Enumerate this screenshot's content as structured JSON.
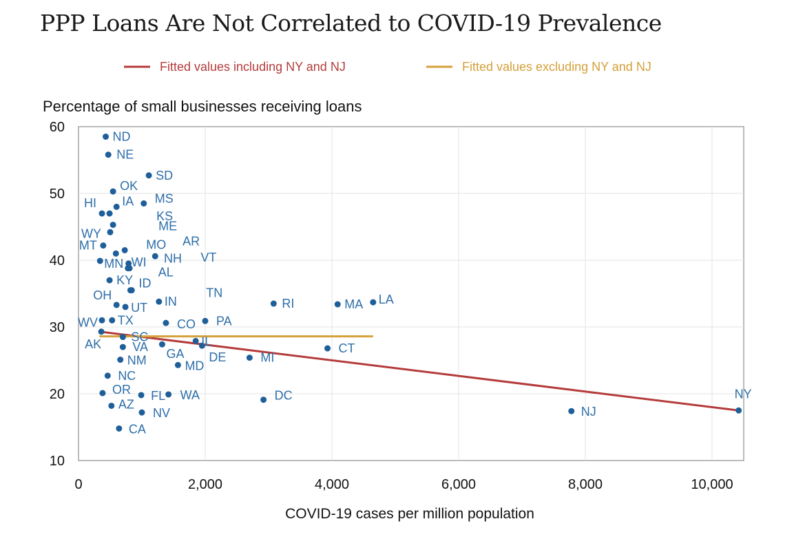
{
  "chart_data": {
    "type": "scatter",
    "title": "PPP Loans Are Not Correlated to COVID-19 Prevalence",
    "ylabel": "Percentage of small businesses receiving loans",
    "xlabel": "COVID-19 cases per million population",
    "xlim": [
      0,
      10500
    ],
    "ylim": [
      10,
      60
    ],
    "x_ticks": [
      0,
      2000,
      4000,
      6000,
      8000,
      10000
    ],
    "x_tick_labels": [
      "0",
      "2,000",
      "4,000",
      "6,000",
      "8,000",
      "10,000"
    ],
    "y_ticks": [
      10,
      20,
      30,
      40,
      50,
      60
    ],
    "y_tick_labels": [
      "10",
      "20",
      "30",
      "40",
      "50",
      "60"
    ],
    "grid": true,
    "legend_position": "top",
    "colors": {
      "points": "#1f5f99",
      "label": "#2d6ea8",
      "fit_incl": "#b53b3b",
      "fit_excl": "#d4a03a"
    },
    "series": [
      {
        "name": "States",
        "points": [
          {
            "label": "ND",
            "x": 430,
            "y": 58.5
          },
          {
            "label": "NE",
            "x": 470,
            "y": 55.8
          },
          {
            "label": "SD",
            "x": 1110,
            "y": 52.7
          },
          {
            "label": "OK",
            "x": 545,
            "y": 50.3
          },
          {
            "label": "MS",
            "x": 1030,
            "y": 48.5
          },
          {
            "label": "IA",
            "x": 600,
            "y": 48.0
          },
          {
            "label": "HI",
            "x": 370,
            "y": 47.0
          },
          {
            "label": "KS",
            "x": 490,
            "y": 47.0
          },
          {
            "label": "ME",
            "x": 545,
            "y": 45.3
          },
          {
            "label": "WY",
            "x": 500,
            "y": 44.2
          },
          {
            "label": "AR",
            "x": 730,
            "y": 41.5
          },
          {
            "label": "MT",
            "x": 390,
            "y": 42.2
          },
          {
            "label": "MO",
            "x": 590,
            "y": 41.0
          },
          {
            "label": "VT",
            "x": 1210,
            "y": 40.6
          },
          {
            "label": "WI",
            "x": 790,
            "y": 39.5
          },
          {
            "label": "MN",
            "x": 340,
            "y": 39.9
          },
          {
            "label": "AL",
            "x": 780,
            "y": 38.8
          },
          {
            "label": "NH",
            "x": 805,
            "y": 38.8
          },
          {
            "label": "KY",
            "x": 490,
            "y": 37.0
          },
          {
            "label": "ID",
            "x": 820,
            "y": 35.5
          },
          {
            "label": "TN",
            "x": 840,
            "y": 35.5
          },
          {
            "label": "IN",
            "x": 1270,
            "y": 33.8
          },
          {
            "label": "OH",
            "x": 600,
            "y": 33.3
          },
          {
            "label": "UT",
            "x": 740,
            "y": 33.0
          },
          {
            "label": "RI",
            "x": 3080,
            "y": 33.5
          },
          {
            "label": "MA",
            "x": 4090,
            "y": 33.4
          },
          {
            "label": "LA",
            "x": 4650,
            "y": 33.7
          },
          {
            "label": "WV",
            "x": 370,
            "y": 31.0
          },
          {
            "label": "TX",
            "x": 530,
            "y": 31.0
          },
          {
            "label": "CO",
            "x": 1380,
            "y": 30.6
          },
          {
            "label": "PA",
            "x": 2000,
            "y": 30.9
          },
          {
            "label": "SC",
            "x": 700,
            "y": 28.5
          },
          {
            "label": "IL",
            "x": 1850,
            "y": 27.9
          },
          {
            "label": "AK",
            "x": 360,
            "y": 29.3
          },
          {
            "label": "VA",
            "x": 700,
            "y": 27.0
          },
          {
            "label": "GA",
            "x": 1320,
            "y": 27.4
          },
          {
            "label": "DE",
            "x": 1950,
            "y": 27.2
          },
          {
            "label": "CT",
            "x": 3930,
            "y": 26.8
          },
          {
            "label": "MI",
            "x": 2700,
            "y": 25.4
          },
          {
            "label": "NM",
            "x": 660,
            "y": 25.1
          },
          {
            "label": "MD",
            "x": 1570,
            "y": 24.3
          },
          {
            "label": "NC",
            "x": 460,
            "y": 22.7
          },
          {
            "label": "OR",
            "x": 380,
            "y": 20.1
          },
          {
            "label": "FL",
            "x": 990,
            "y": 19.8
          },
          {
            "label": "WA",
            "x": 1420,
            "y": 19.9
          },
          {
            "label": "DC",
            "x": 2920,
            "y": 19.1
          },
          {
            "label": "AZ",
            "x": 520,
            "y": 18.2
          },
          {
            "label": "NV",
            "x": 1000,
            "y": 17.2
          },
          {
            "label": "CA",
            "x": 640,
            "y": 14.8
          },
          {
            "label": "NJ",
            "x": 7780,
            "y": 17.4
          },
          {
            "label": "NY",
            "x": 10420,
            "y": 17.5
          }
        ]
      }
    ],
    "fit_lines": [
      {
        "name": "Fitted values including NY and NJ",
        "x": [
          330,
          10420
        ],
        "y": [
          29.3,
          17.5
        ]
      },
      {
        "name": "Fitted values excluding NY and NJ",
        "x": [
          330,
          4650
        ],
        "y": [
          28.6,
          28.6
        ]
      }
    ]
  }
}
